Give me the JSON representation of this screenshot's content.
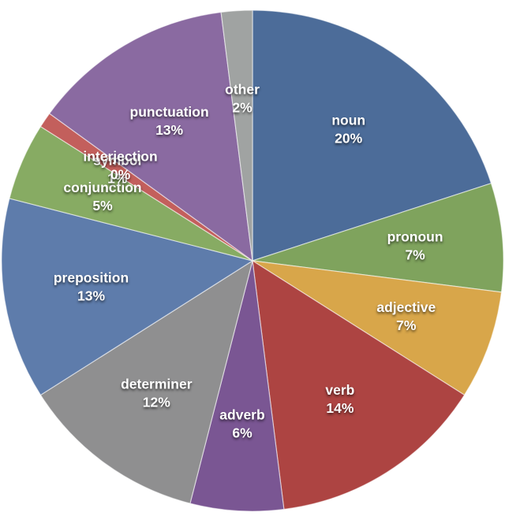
{
  "chart_data": {
    "type": "pie",
    "title": "",
    "legend": "none",
    "direction": "clockwise",
    "start_angle_deg": 0,
    "label_format": "name and percent on two centered lines inside each slice",
    "label_text_color": "#ffffff",
    "background_color": "#ffffff",
    "slices": [
      {
        "label": "noun",
        "value_pct": 20,
        "display_pct": "20%",
        "color": "#4c6c99"
      },
      {
        "label": "pronoun",
        "value_pct": 7,
        "display_pct": "7%",
        "color": "#7fa35d"
      },
      {
        "label": "adjective",
        "value_pct": 7,
        "display_pct": "7%",
        "color": "#d8a64a"
      },
      {
        "label": "verb",
        "value_pct": 14,
        "display_pct": "14%",
        "color": "#ad4442"
      },
      {
        "label": "adverb",
        "value_pct": 6,
        "display_pct": "6%",
        "color": "#7a5693"
      },
      {
        "label": "determiner",
        "value_pct": 12,
        "display_pct": "12%",
        "color": "#8f8f90"
      },
      {
        "label": "preposition",
        "value_pct": 13,
        "display_pct": "13%",
        "color": "#5e7cab"
      },
      {
        "label": "conjunction",
        "value_pct": 5,
        "display_pct": "5%",
        "color": "#87ab63"
      },
      {
        "label": "symbol",
        "value_pct": 1,
        "display_pct": "1%",
        "color": "#c35f5c"
      },
      {
        "label": "interjection",
        "value_pct": 0,
        "display_pct": "0%",
        "color": "#ddb15f"
      },
      {
        "label": "punctuation",
        "value_pct": 13,
        "display_pct": "13%",
        "color": "#8a6aa1"
      },
      {
        "label": "other",
        "value_pct": 2,
        "display_pct": "2%",
        "color": "#a0a3a2"
      }
    ]
  }
}
